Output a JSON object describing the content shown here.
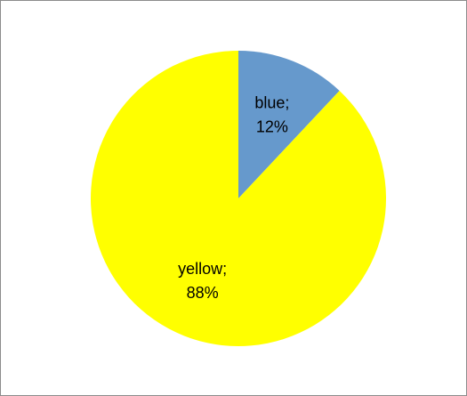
{
  "chart_data": {
    "type": "pie",
    "title": "",
    "slices": [
      {
        "label": "blue",
        "value": 12,
        "color": "#6699CC",
        "data_label_line1": "blue;",
        "data_label_line2": "12%"
      },
      {
        "label": "yellow",
        "value": 88,
        "color": "#FFFF00",
        "data_label_line1": "yellow;",
        "data_label_line2": "88%"
      }
    ],
    "start_angle": "12 o'clock",
    "direction": "clockwise",
    "legend": "none"
  }
}
